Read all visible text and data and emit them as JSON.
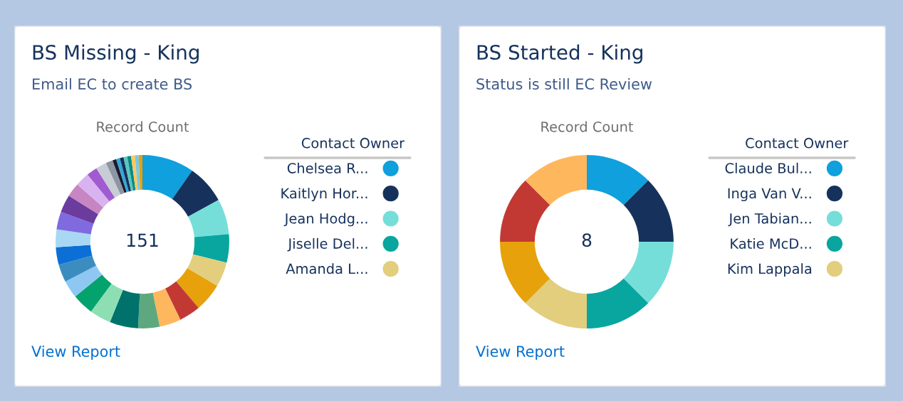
{
  "chart_data": [
    {
      "type": "donut",
      "title": "BS Missing - King",
      "subtitle": "Email EC to create BS",
      "legend_title": "Contact Owner",
      "legend": "right",
      "categories": [
        "Chelsea R...",
        "Kaitlyn Hor...",
        "Jean Hodg...",
        "Jiselle Del...",
        "Amanda L...",
        null,
        null,
        null,
        null,
        null,
        null,
        null,
        null,
        null,
        null,
        null,
        null,
        null,
        null,
        null,
        null,
        null,
        null,
        null,
        null,
        null,
        null,
        null,
        null,
        null,
        null
      ],
      "values": [
        9.7,
        7.3,
        6.6,
        5.3,
        4.6,
        5.3,
        4.0,
        4.0,
        4.0,
        5.3,
        4.0,
        4.0,
        3.3,
        3.3,
        3.3,
        3.3,
        3.3,
        3.3,
        2.6,
        2.6,
        2.0,
        2.0,
        1.3,
        0.7,
        0.7,
        0.7,
        0.7,
        0.7,
        0.7,
        0.7,
        0.7
      ],
      "colors": [
        "#0fa0dd",
        "#16325c",
        "#76ded9",
        "#08a69e",
        "#e2ce7d",
        "#e6a10b",
        "#c23934",
        "#ffb75d",
        "#5da87f",
        "#00716b",
        "#8ddfb3",
        "#04a36e",
        "#8ec7f2",
        "#3b8dbf",
        "#0b6fd6",
        "#a9d8f4",
        "#7f6ae0",
        "#6b3c9e",
        "#c785c2",
        "#d9b3f0",
        "#a05bd1",
        "#c8ccd4",
        "#8d96a3",
        "#1a1a2e",
        "#33a8d8",
        "#16325c",
        "#58c7c2",
        "#0a8a85",
        "#ffc95d",
        "#7ec8e3",
        "#e6a10b"
      ],
      "annotations": [
        "Record Count",
        "151",
        "View Report"
      ]
    },
    {
      "type": "donut",
      "title": "BS Started - King",
      "subtitle": "Status is still EC Review",
      "legend_title": "Contact Owner",
      "legend": "right",
      "categories": [
        "Claude Bul...",
        "Inga Van V...",
        "Jen Tabian...",
        "Katie McD...",
        "Kim Lappala",
        null,
        null,
        null
      ],
      "values": [
        12.5,
        12.5,
        12.5,
        12.5,
        12.5,
        12.5,
        12.5,
        12.5
      ],
      "colors": [
        "#0fa0dd",
        "#16325c",
        "#76ded9",
        "#08a69e",
        "#e2ce7d",
        "#e6a10b",
        "#c23934",
        "#ffb75d"
      ],
      "annotations": [
        "Record Count",
        "8",
        "View Report"
      ]
    }
  ]
}
